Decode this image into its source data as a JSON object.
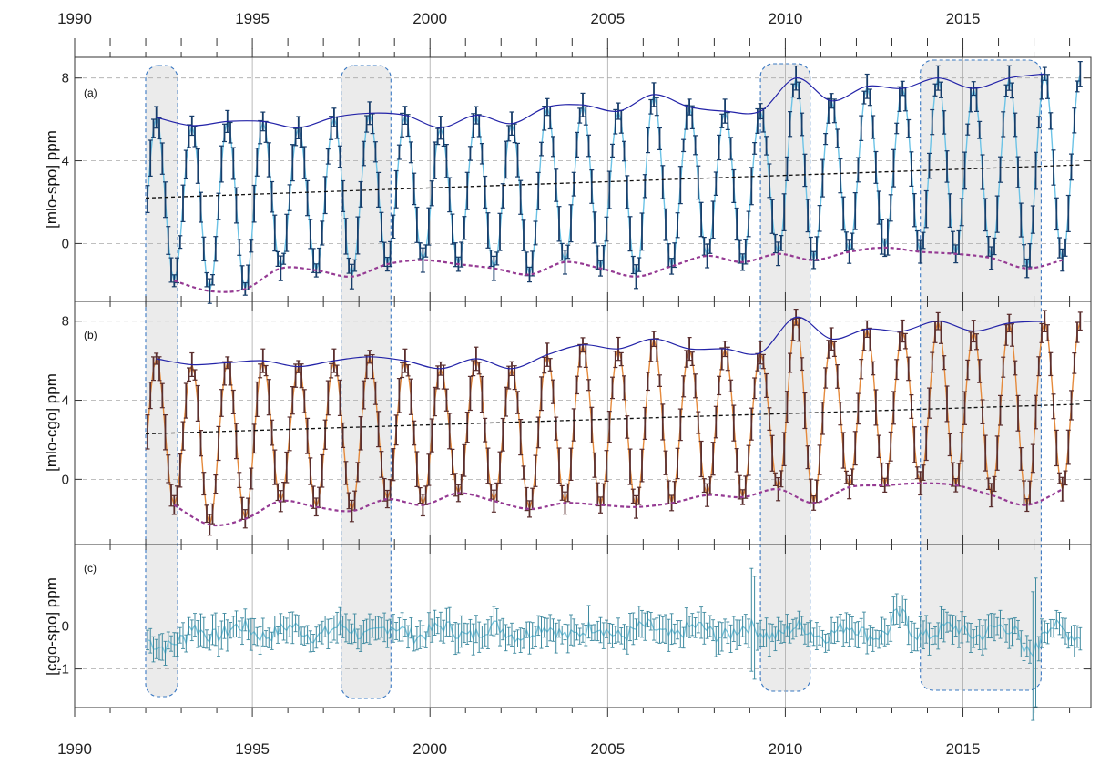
{
  "colors": {
    "background": "#ffffff",
    "frame": "#333333",
    "grid": "#aaaaaa",
    "highlight_fill": "#ebebeb",
    "highlight_border": "#3a78c2",
    "envelope_max": "#2323a8",
    "envelope_min": "#953a93",
    "trend": "#111111",
    "a_line": "#6cc3e6",
    "a_err": "#173d6a",
    "b_line": "#e58a3c",
    "b_err": "#5a2e2e",
    "c_line": "#79c8e0",
    "c_err": "#3f8aa0"
  },
  "chart_data": {
    "type": "line",
    "x_axis": {
      "range": [
        1990,
        2018.6
      ],
      "tick_labels": [
        "1990",
        "1995",
        "2000",
        "2005",
        "2010",
        "2015"
      ],
      "tick_values": [
        1990,
        1995,
        2000,
        2005,
        2010,
        2015
      ],
      "labels_top_and_bottom": true,
      "vertical_grid_at": [
        1995,
        2000,
        2005,
        2010,
        2015
      ]
    },
    "highlight_periods": [
      [
        1992.0,
        1992.9
      ],
      [
        1997.5,
        1998.9
      ],
      [
        2009.3,
        2010.7
      ],
      [
        2013.8,
        2017.2
      ]
    ],
    "panels": [
      {
        "id": "a",
        "panel_label": "(a)",
        "ylabel": "[mlo-spo] ppm",
        "ylim": [
          -2.8,
          9
        ],
        "yticks": [
          0,
          4,
          8
        ],
        "ytick_labels": [
          "0",
          "4",
          "8"
        ],
        "trend": {
          "x": [
            1992,
            2018.3
          ],
          "y": [
            2.2,
            3.8
          ]
        },
        "envelope_max": {
          "x": [
            1992.3,
            1993.3,
            1994.3,
            1995.3,
            1996.3,
            1997.3,
            1998.3,
            1999.3,
            2000.3,
            2001.3,
            2002.3,
            2003.3,
            2004.3,
            2005.3,
            2006.3,
            2007.3,
            2008.3,
            2009.3,
            2010.3,
            2011.3,
            2012.3,
            2013.3,
            2014.3,
            2015.3,
            2016.3,
            2017.3
          ],
          "y": [
            6.1,
            5.7,
            5.9,
            5.9,
            5.6,
            6.1,
            6.3,
            6.2,
            5.6,
            6.2,
            5.8,
            6.6,
            6.7,
            6.4,
            7.2,
            6.6,
            6.4,
            6.4,
            8.0,
            6.9,
            7.6,
            7.5,
            8.0,
            7.5,
            8.0,
            8.2
          ]
        },
        "envelope_min": {
          "x": [
            1992.8,
            1993.8,
            1994.8,
            1995.8,
            1996.8,
            1997.8,
            1998.8,
            1999.8,
            2000.8,
            2001.8,
            2002.8,
            2003.8,
            2004.8,
            2005.8,
            2006.8,
            2007.8,
            2008.8,
            2009.8,
            2010.8,
            2011.8,
            2012.8,
            2013.8,
            2014.8,
            2015.8,
            2016.8,
            2017.8
          ],
          "y": [
            -1.8,
            -2.3,
            -2.2,
            -1.2,
            -1.3,
            -1.6,
            -1.0,
            -0.8,
            -1.0,
            -1.2,
            -1.5,
            -0.9,
            -1.2,
            -1.6,
            -1.1,
            -0.6,
            -0.9,
            -0.5,
            -0.8,
            -0.4,
            -0.2,
            -0.4,
            -0.5,
            -0.7,
            -1.2,
            -0.8
          ]
        }
      },
      {
        "id": "b",
        "panel_label": "(b)",
        "ylabel": "[mlo-cgo] ppm",
        "ylim": [
          -3.3,
          9
        ],
        "yticks": [
          0,
          4,
          8
        ],
        "ytick_labels": [
          "0",
          "4",
          "8"
        ],
        "trend": {
          "x": [
            1992,
            2018.3
          ],
          "y": [
            2.3,
            3.8
          ]
        },
        "envelope_max": {
          "x": [
            1992.3,
            1993.3,
            1994.3,
            1995.3,
            1996.3,
            1997.3,
            1998.3,
            1999.3,
            2000.3,
            2001.3,
            2002.3,
            2003.3,
            2004.3,
            2005.3,
            2006.3,
            2007.3,
            2008.3,
            2009.3,
            2010.3,
            2011.3,
            2012.3,
            2013.3,
            2014.3,
            2015.3,
            2016.3,
            2017.3
          ],
          "y": [
            6.1,
            5.8,
            5.9,
            6.0,
            5.7,
            6.0,
            6.2,
            6.0,
            5.6,
            6.1,
            5.6,
            6.3,
            6.8,
            6.6,
            7.1,
            6.6,
            6.6,
            6.4,
            8.2,
            7.1,
            7.6,
            7.5,
            8.0,
            7.5,
            7.9,
            8.0
          ]
        },
        "envelope_min": {
          "x": [
            1992.8,
            1993.8,
            1994.8,
            1995.8,
            1996.8,
            1997.8,
            1998.8,
            1999.8,
            2000.8,
            2001.8,
            2002.8,
            2003.8,
            2004.8,
            2005.8,
            2006.8,
            2007.8,
            2008.8,
            2009.8,
            2010.8,
            2011.8,
            2012.8,
            2013.8,
            2014.8,
            2015.8,
            2016.8,
            2017.8
          ],
          "y": [
            -1.3,
            -2.3,
            -2.0,
            -1.1,
            -1.4,
            -1.6,
            -1.0,
            -1.3,
            -0.7,
            -1.1,
            -1.5,
            -1.2,
            -1.3,
            -1.4,
            -1.2,
            -0.8,
            -0.9,
            -0.5,
            -1.2,
            -0.4,
            -0.3,
            -0.2,
            -0.3,
            -0.8,
            -1.3,
            -0.5
          ]
        }
      },
      {
        "id": "c",
        "panel_label": "(c)",
        "ylabel": "[cgo-spo] ppm",
        "ylim": [
          -1.9,
          1.9
        ],
        "yticks": [
          -1,
          0
        ],
        "ytick_labels": [
          "-1",
          "0"
        ],
        "series_note_none": true
      }
    ]
  }
}
